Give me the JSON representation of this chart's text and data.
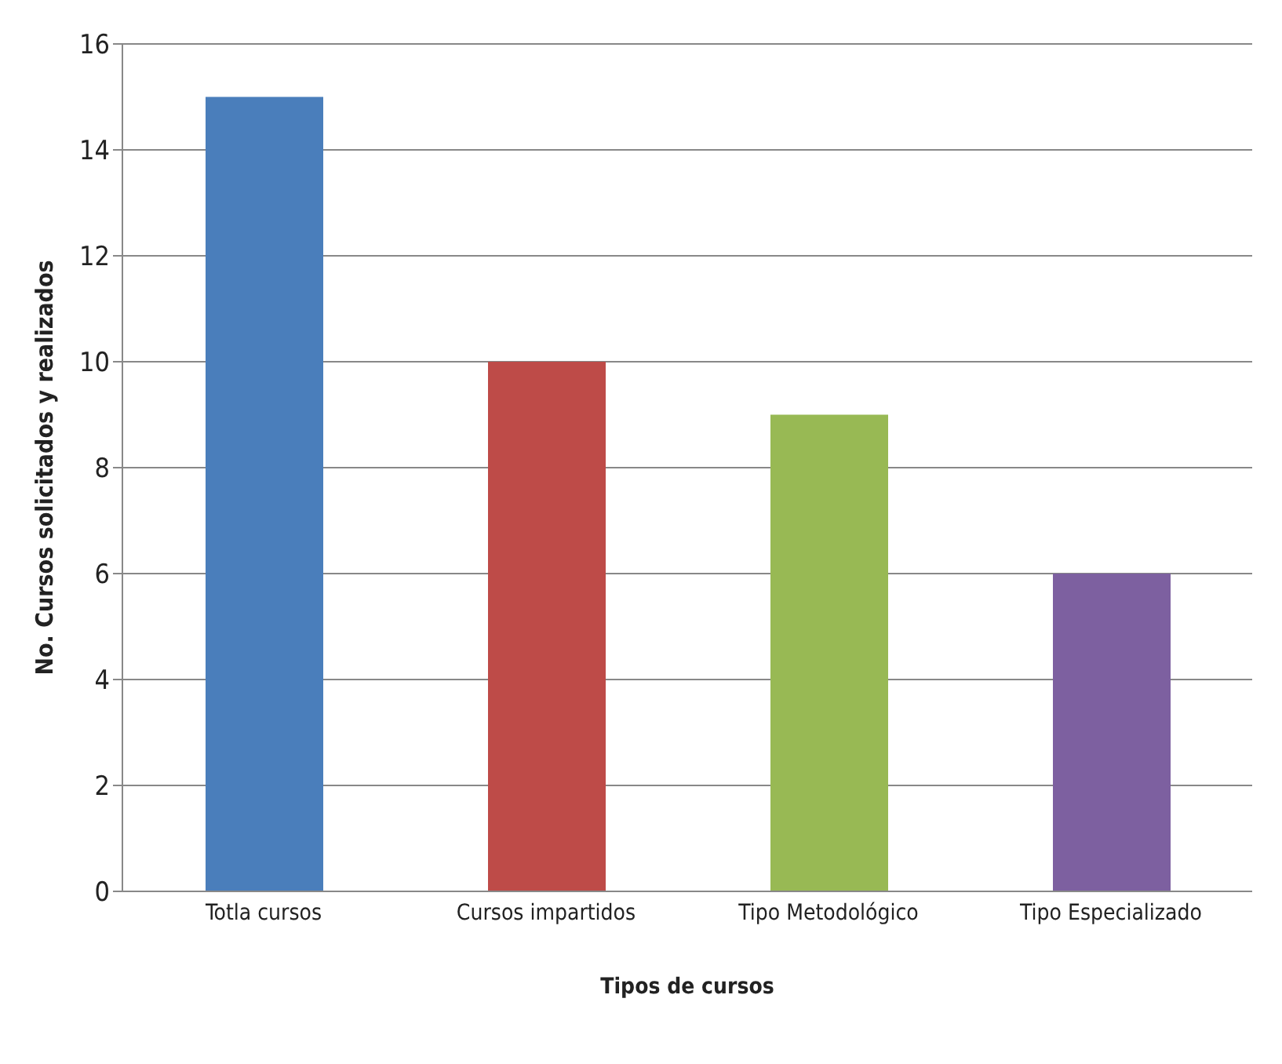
{
  "chart_data": {
    "type": "bar",
    "xlabel": "Tipos de cursos",
    "ylabel": "No. Cursos solicitados y realizados",
    "categories": [
      "Totla cursos",
      "Cursos impartidos",
      "Tipo Metodológico",
      "Tipo Especializado"
    ],
    "values": [
      15,
      10,
      9,
      6
    ],
    "colors": [
      "#4a7ebb",
      "#be4b48",
      "#98b954",
      "#7d60a0"
    ],
    "ylim": [
      0,
      16
    ],
    "yticks": [
      0,
      2,
      4,
      6,
      8,
      10,
      12,
      14,
      16
    ],
    "grid": "y"
  }
}
